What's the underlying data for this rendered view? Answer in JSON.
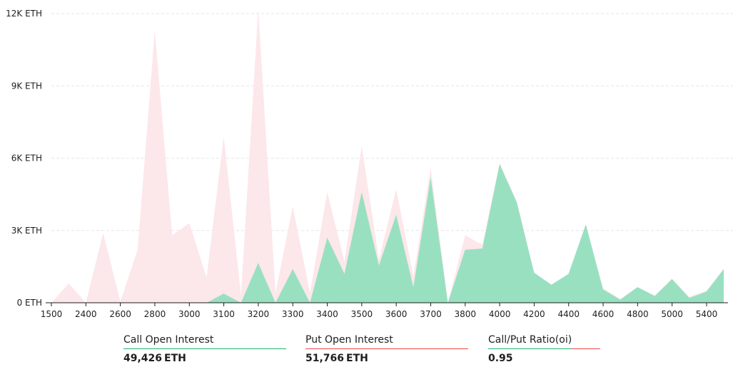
{
  "colors": {
    "call": "#99e0c1",
    "put": "#fce7ea",
    "call_line": "#20b26c",
    "put_line": "#ef454a",
    "grid": "#e6e6e6",
    "axis": "#1e1e1e"
  },
  "chart_data": {
    "type": "area",
    "title": "",
    "x_ticks": [
      "1500",
      "2400",
      "2600",
      "2800",
      "3000",
      "3100",
      "3200",
      "3300",
      "3400",
      "3500",
      "3600",
      "3700",
      "3800",
      "4000",
      "4200",
      "4400",
      "4600",
      "4800",
      "5000",
      "5400"
    ],
    "y_ticks": [
      "0 ETH",
      "3K ETH",
      "6K ETH",
      "9K ETH",
      "12K ETH"
    ],
    "ylim": [
      0,
      12000
    ],
    "strikes": [
      "1500",
      "2000",
      "2400",
      "2500",
      "2600",
      "2700",
      "2800",
      "2900",
      "3000",
      "3050",
      "3100",
      "3150",
      "3200",
      "3250",
      "3300",
      "3350",
      "3400",
      "3450",
      "3500",
      "3550",
      "3600",
      "3650",
      "3700",
      "3750",
      "3800",
      "3900",
      "4000",
      "4100",
      "4200",
      "4300",
      "4400",
      "4500",
      "4600",
      "4700",
      "4800",
      "4900",
      "5000",
      "5200",
      "5400",
      "5600"
    ],
    "series": [
      {
        "name": "Put Open Interest",
        "values": [
          0,
          800,
          0,
          2900,
          50,
          2200,
          11300,
          2800,
          3300,
          1050,
          6900,
          300,
          12200,
          400,
          4000,
          400,
          4600,
          1700,
          6500,
          1800,
          4700,
          1100,
          5600,
          0,
          2800,
          2400,
          5800,
          4200,
          1200,
          700,
          1200,
          3200,
          600,
          150,
          650,
          300,
          1000,
          250,
          500,
          1400
        ]
      },
      {
        "name": "Call Open Interest",
        "values": [
          0,
          0,
          0,
          0,
          0,
          0,
          0,
          0,
          0,
          0,
          380,
          0,
          1650,
          0,
          1400,
          0,
          2700,
          1200,
          4600,
          1550,
          3650,
          650,
          5200,
          0,
          2200,
          2250,
          5750,
          4150,
          1250,
          750,
          1200,
          3250,
          550,
          130,
          650,
          280,
          980,
          200,
          460,
          1400
        ]
      }
    ]
  },
  "summary": {
    "call": {
      "label": "Call Open Interest",
      "value": "49,426",
      "unit": "ETH"
    },
    "put": {
      "label": "Put Open Interest",
      "value": "51,766",
      "unit": "ETH"
    },
    "ratio": {
      "label": "Call/Put Ratio(oi)",
      "value": "0.95"
    }
  }
}
